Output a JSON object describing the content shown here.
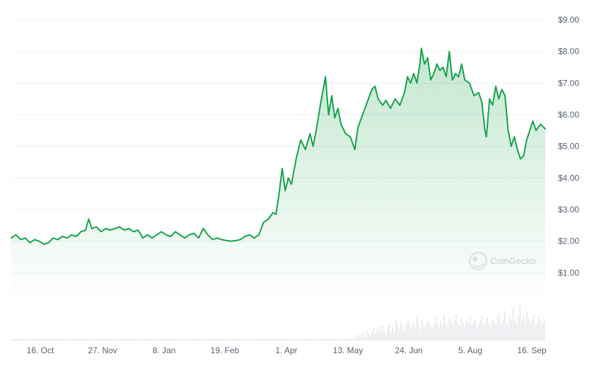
{
  "chart_data": {
    "type": "area",
    "x_axis": {
      "type": "date",
      "tick_labels": [
        "16. Oct",
        "27. Nov",
        "8. Jan",
        "19. Feb",
        "1. Apr",
        "13. May",
        "24. Jun",
        "5. Aug",
        "16. Sep"
      ]
    },
    "y_axis": {
      "position": "right",
      "ylim": [
        0,
        9
      ],
      "tick_labels": [
        "$9.00",
        "$8.00",
        "$7.00",
        "$6.00",
        "$5.00",
        "$4.00",
        "$3.00",
        "$2.00",
        "$1.00"
      ],
      "tick_values": [
        9,
        8,
        7,
        6,
        5,
        4,
        3,
        2,
        1
      ]
    },
    "grid": true,
    "colors": {
      "line": "#16a34a",
      "fill": "#16a34a",
      "volume": "#e5e7eb",
      "watermark": "#c9ccd1"
    },
    "series": [
      {
        "values": [
          [
            "2023-09-21",
            2.1
          ],
          [
            "2023-09-24",
            2.2
          ],
          [
            "2023-09-27",
            2.05
          ],
          [
            "2023-09-30",
            2.1
          ],
          [
            "2023-10-03",
            1.95
          ],
          [
            "2023-10-06",
            2.05
          ],
          [
            "2023-10-09",
            2.0
          ],
          [
            "2023-10-12",
            1.9
          ],
          [
            "2023-10-15",
            1.95
          ],
          [
            "2023-10-18",
            2.1
          ],
          [
            "2023-10-21",
            2.05
          ],
          [
            "2023-10-24",
            2.15
          ],
          [
            "2023-10-27",
            2.1
          ],
          [
            "2023-10-30",
            2.2
          ],
          [
            "2023-11-02",
            2.15
          ],
          [
            "2023-11-05",
            2.3
          ],
          [
            "2023-11-08",
            2.35
          ],
          [
            "2023-11-10",
            2.7
          ],
          [
            "2023-11-12",
            2.4
          ],
          [
            "2023-11-15",
            2.45
          ],
          [
            "2023-11-18",
            2.3
          ],
          [
            "2023-11-21",
            2.4
          ],
          [
            "2023-11-24",
            2.35
          ],
          [
            "2023-11-27",
            2.4
          ],
          [
            "2023-11-30",
            2.45
          ],
          [
            "2023-12-03",
            2.35
          ],
          [
            "2023-12-06",
            2.4
          ],
          [
            "2023-12-09",
            2.3
          ],
          [
            "2023-12-12",
            2.35
          ],
          [
            "2023-12-15",
            2.1
          ],
          [
            "2023-12-18",
            2.2
          ],
          [
            "2023-12-21",
            2.1
          ],
          [
            "2023-12-24",
            2.2
          ],
          [
            "2023-12-27",
            2.3
          ],
          [
            "2023-12-30",
            2.2
          ],
          [
            "2024-01-02",
            2.15
          ],
          [
            "2024-01-05",
            2.3
          ],
          [
            "2024-01-08",
            2.2
          ],
          [
            "2024-01-11",
            2.1
          ],
          [
            "2024-01-14",
            2.2
          ],
          [
            "2024-01-17",
            2.25
          ],
          [
            "2024-01-20",
            2.1
          ],
          [
            "2024-01-23",
            2.4
          ],
          [
            "2024-01-26",
            2.2
          ],
          [
            "2024-01-29",
            2.05
          ],
          [
            "2024-02-01",
            2.1
          ],
          [
            "2024-02-04",
            2.05
          ],
          [
            "2024-02-07",
            2.02
          ],
          [
            "2024-02-10",
            2.0
          ],
          [
            "2024-02-13",
            2.02
          ],
          [
            "2024-02-16",
            2.05
          ],
          [
            "2024-02-19",
            2.15
          ],
          [
            "2024-02-22",
            2.2
          ],
          [
            "2024-02-25",
            2.1
          ],
          [
            "2024-02-28",
            2.2
          ],
          [
            "2024-03-02",
            2.6
          ],
          [
            "2024-03-05",
            2.7
          ],
          [
            "2024-03-08",
            2.9
          ],
          [
            "2024-03-10",
            2.85
          ],
          [
            "2024-03-12",
            3.5
          ],
          [
            "2024-03-14",
            4.3
          ],
          [
            "2024-03-16",
            3.6
          ],
          [
            "2024-03-18",
            4.0
          ],
          [
            "2024-03-20",
            3.8
          ],
          [
            "2024-03-23",
            4.6
          ],
          [
            "2024-03-26",
            5.2
          ],
          [
            "2024-03-29",
            4.9
          ],
          [
            "2024-04-01",
            5.4
          ],
          [
            "2024-04-03",
            5.0
          ],
          [
            "2024-04-05",
            5.5
          ],
          [
            "2024-04-08",
            6.4
          ],
          [
            "2024-04-11",
            7.2
          ],
          [
            "2024-04-13",
            6.0
          ],
          [
            "2024-04-15",
            6.6
          ],
          [
            "2024-04-17",
            5.9
          ],
          [
            "2024-04-19",
            6.2
          ],
          [
            "2024-04-21",
            5.7
          ],
          [
            "2024-04-24",
            5.4
          ],
          [
            "2024-04-27",
            5.3
          ],
          [
            "2024-04-30",
            4.9
          ],
          [
            "2024-05-02",
            5.6
          ],
          [
            "2024-05-05",
            6.0
          ],
          [
            "2024-05-08",
            6.4
          ],
          [
            "2024-05-11",
            6.8
          ],
          [
            "2024-05-13",
            6.9
          ],
          [
            "2024-05-15",
            6.5
          ],
          [
            "2024-05-18",
            6.3
          ],
          [
            "2024-05-20",
            6.45
          ],
          [
            "2024-05-23",
            6.2
          ],
          [
            "2024-05-26",
            6.5
          ],
          [
            "2024-05-29",
            6.3
          ],
          [
            "2024-06-01",
            6.7
          ],
          [
            "2024-06-03",
            7.2
          ],
          [
            "2024-06-05",
            7.0
          ],
          [
            "2024-06-07",
            7.3
          ],
          [
            "2024-06-09",
            7.0
          ],
          [
            "2024-06-11",
            7.6
          ],
          [
            "2024-06-12",
            8.1
          ],
          [
            "2024-06-14",
            7.6
          ],
          [
            "2024-06-16",
            7.8
          ],
          [
            "2024-06-18",
            7.1
          ],
          [
            "2024-06-20",
            7.3
          ],
          [
            "2024-06-22",
            7.6
          ],
          [
            "2024-06-24",
            7.4
          ],
          [
            "2024-06-26",
            7.5
          ],
          [
            "2024-06-28",
            7.2
          ],
          [
            "2024-06-30",
            8.0
          ],
          [
            "2024-07-02",
            7.1
          ],
          [
            "2024-07-04",
            7.3
          ],
          [
            "2024-07-06",
            7.2
          ],
          [
            "2024-07-08",
            7.6
          ],
          [
            "2024-07-10",
            7.1
          ],
          [
            "2024-07-13",
            7.0
          ],
          [
            "2024-07-16",
            6.6
          ],
          [
            "2024-07-19",
            6.7
          ],
          [
            "2024-07-21",
            6.4
          ],
          [
            "2024-07-23",
            5.5
          ],
          [
            "2024-07-24",
            5.3
          ],
          [
            "2024-07-26",
            6.5
          ],
          [
            "2024-07-28",
            6.3
          ],
          [
            "2024-07-30",
            6.9
          ],
          [
            "2024-08-01",
            6.5
          ],
          [
            "2024-08-03",
            6.8
          ],
          [
            "2024-08-05",
            6.6
          ],
          [
            "2024-08-07",
            5.5
          ],
          [
            "2024-08-09",
            5.0
          ],
          [
            "2024-08-11",
            5.3
          ],
          [
            "2024-08-13",
            4.9
          ],
          [
            "2024-08-15",
            4.6
          ],
          [
            "2024-08-17",
            4.7
          ],
          [
            "2024-08-19",
            5.2
          ],
          [
            "2024-08-21",
            5.5
          ],
          [
            "2024-08-23",
            5.8
          ],
          [
            "2024-08-25",
            5.5
          ],
          [
            "2024-08-28",
            5.7
          ],
          [
            "2024-08-31",
            5.55
          ]
        ]
      }
    ],
    "volume": [
      1,
      1,
      1,
      1,
      1,
      1,
      1,
      1,
      1,
      1,
      1,
      1,
      1,
      1,
      1,
      1,
      1,
      1,
      1,
      1,
      1,
      1,
      1,
      1,
      1,
      1,
      1,
      1,
      1,
      1,
      1,
      1,
      1,
      1,
      1,
      1,
      1,
      1,
      1,
      1,
      1,
      1,
      1,
      1,
      1,
      1,
      1,
      1,
      1,
      1,
      1,
      1,
      1,
      1,
      1,
      1,
      1,
      1,
      1,
      1,
      1,
      1,
      1,
      1,
      1,
      1,
      1,
      1,
      1,
      1,
      1,
      1,
      1,
      1,
      1,
      1,
      1,
      1,
      1,
      1,
      1,
      1,
      1,
      1,
      1,
      1,
      1,
      1,
      1,
      1,
      1,
      1,
      1,
      1,
      1,
      1,
      1,
      1,
      1,
      1,
      1,
      1,
      1,
      1,
      1,
      1,
      1,
      1,
      1,
      1,
      1,
      1,
      1,
      1,
      1,
      1,
      1,
      1,
      1,
      1,
      1,
      1,
      1,
      1,
      1,
      1,
      1,
      1,
      1,
      1,
      1,
      1,
      1,
      1,
      1,
      1,
      1,
      1,
      1,
      1,
      1,
      1,
      1,
      1,
      1,
      1,
      1,
      1,
      1,
      1,
      1,
      1,
      1,
      1,
      1,
      1,
      1,
      1,
      1,
      1,
      1,
      1,
      1,
      1,
      1,
      1,
      1,
      1,
      1,
      1,
      1,
      1,
      1,
      1,
      1,
      1,
      1,
      1,
      1,
      1,
      1,
      1,
      1,
      1,
      1,
      1,
      1,
      1,
      1,
      1,
      1,
      1,
      1,
      1,
      1,
      1,
      1,
      1,
      1,
      1,
      3,
      2,
      4,
      3,
      5,
      2,
      6,
      4,
      3,
      5,
      7,
      4,
      6,
      8,
      5,
      9,
      6,
      4,
      7,
      10,
      5,
      8,
      6,
      12,
      9,
      7,
      11,
      8,
      6,
      10,
      13,
      9,
      7,
      11,
      8,
      14,
      10,
      7,
      12,
      9,
      8,
      11,
      13,
      9,
      7,
      10,
      14,
      11,
      8,
      12,
      9,
      15,
      10,
      8,
      13,
      11,
      9,
      12,
      16,
      10,
      9,
      13,
      11,
      8,
      12,
      10,
      14,
      9,
      11,
      13,
      8,
      10,
      12,
      15,
      9,
      11,
      14,
      10,
      8,
      12,
      11,
      9,
      13,
      16,
      10,
      12,
      18,
      11,
      9,
      14,
      12,
      20,
      13,
      10,
      15,
      22,
      12,
      14,
      11,
      17,
      13,
      10,
      12,
      15,
      9,
      11,
      14,
      12,
      10,
      13
    ]
  },
  "watermark": {
    "icon": "coingecko-logo-icon",
    "text": "CoinGecko"
  }
}
